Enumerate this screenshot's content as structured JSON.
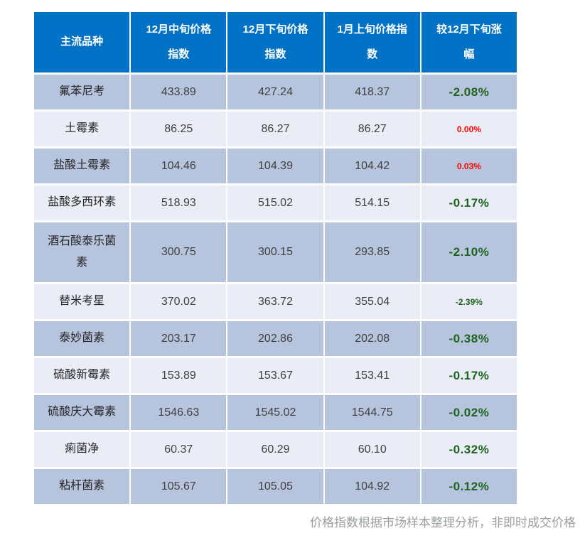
{
  "page": {
    "footer_note": "价格指数根据市场样本整理分析，非即时成交价格"
  },
  "colors": {
    "header_bg": "#0072c6",
    "row_dark_bg": "#b7c4de",
    "row_light_bg": "#eaedf6",
    "change_green": "#1e6420",
    "change_red": "#fe0000",
    "number_text": "#404040",
    "footer_text": "#9c9da0"
  },
  "table": {
    "columns": [
      "主流品种",
      "12月中旬价格\n指数",
      "12月下旬价格\n指数",
      "1月上旬价格指\n数",
      "较12月下旬涨\n幅"
    ],
    "rows": [
      {
        "name": "氟苯尼考",
        "mid_dec": "433.89",
        "late_dec": "427.24",
        "early_jan": "418.37",
        "change": "-2.08%",
        "change_color": "#1e6420"
      },
      {
        "name": "土霉素",
        "mid_dec": "86.25",
        "late_dec": "86.27",
        "early_jan": "86.27",
        "change": "0.00%",
        "change_color": "#fe0000"
      },
      {
        "name": "盐酸土霉素",
        "mid_dec": "104.46",
        "late_dec": "104.39",
        "early_jan": "104.42",
        "change": "0.03%",
        "change_color": "#fe0000"
      },
      {
        "name": "盐酸多西环素",
        "mid_dec": "518.93",
        "late_dec": "515.02",
        "early_jan": "514.15",
        "change": "-0.17%",
        "change_color": "#1e6420"
      },
      {
        "name": "酒石酸泰乐菌\n素",
        "mid_dec": "300.75",
        "late_dec": "300.15",
        "early_jan": "293.85",
        "change": "-2.10%",
        "change_color": "#1e6420"
      },
      {
        "name": "替米考星",
        "mid_dec": "370.02",
        "late_dec": "363.72",
        "early_jan": "355.04",
        "change": "-2.39%",
        "change_color": "#1e6420"
      },
      {
        "name": "泰妙菌素",
        "mid_dec": "203.17",
        "late_dec": "202.86",
        "early_jan": "202.08",
        "change": "-0.38%",
        "change_color": "#1e6420"
      },
      {
        "name": "硫酸新霉素",
        "mid_dec": "153.89",
        "late_dec": "153.67",
        "early_jan": "153.41",
        "change": "-0.17%",
        "change_color": "#1e6420"
      },
      {
        "name": "硫酸庆大霉素",
        "mid_dec": "1546.63",
        "late_dec": "1545.02",
        "early_jan": "1544.75",
        "change": "-0.02%",
        "change_color": "#1e6420"
      },
      {
        "name": "痢菌净",
        "mid_dec": "60.37",
        "late_dec": "60.29",
        "early_jan": "60.10",
        "change": "-0.32%",
        "change_color": "#1e6420"
      },
      {
        "name": "粘杆菌素",
        "mid_dec": "105.67",
        "late_dec": "105.05",
        "early_jan": "104.92",
        "change": "-0.12%",
        "change_color": "#1e6420"
      }
    ]
  }
}
